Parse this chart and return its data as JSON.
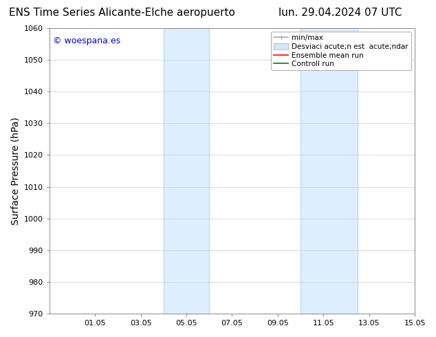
{
  "title_left": "ENS Time Series Alicante-Elche aeropuerto",
  "title_right": "lun. 29.04.2024 07 UTC",
  "ylabel": "Surface Pressure (hPa)",
  "ylim": [
    970,
    1060
  ],
  "yticks": [
    970,
    980,
    990,
    1000,
    1010,
    1020,
    1030,
    1040,
    1050,
    1060
  ],
  "xtick_labels": [
    "01.05",
    "03.05",
    "05.05",
    "07.05",
    "09.05",
    "11.05",
    "13.05",
    "15.05"
  ],
  "xtick_positions": [
    2,
    4,
    6,
    8,
    10,
    12,
    14,
    16
  ],
  "xlim": [
    0,
    16
  ],
  "shaded": [
    {
      "x_start": 5.0,
      "x_end": 7.0
    },
    {
      "x_start": 11.0,
      "x_end": 13.5
    }
  ],
  "shaded_color": "#ddeeff",
  "shaded_edge_color": "#b8d4ee",
  "watermark_text": "© woespana.es",
  "watermark_color": "#0000cc",
  "bg_color": "#ffffff",
  "grid_color": "#cccccc",
  "spine_color": "#888888",
  "title_fontsize": 11,
  "ylabel_fontsize": 10,
  "tick_fontsize": 8,
  "watermark_fontsize": 9,
  "legend_fontsize": 7.5,
  "minmax_color": "#aaaaaa",
  "desviac_facecolor": "#d0e8f8",
  "desviac_edgecolor": "#aaaaaa",
  "ensemble_color": "#ff0000",
  "control_color": "#008000",
  "legend_label_minmax": "min/max",
  "legend_label_desviac": "Desviaci acute;n est  acute;ndar",
  "legend_label_ensemble": "Ensemble mean run",
  "legend_label_control": "Controll run"
}
